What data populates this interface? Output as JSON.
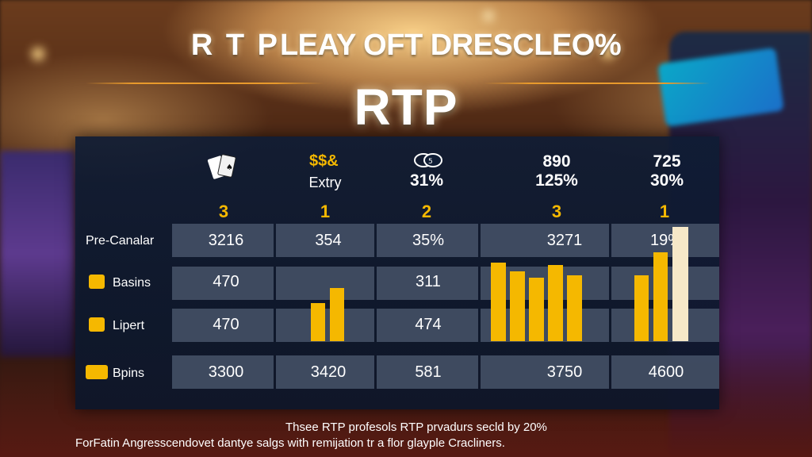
{
  "header": {
    "top_title_first": "R T P",
    "top_title_rest": "LEAY OFT DRESCLEO%",
    "big_title": "RTP"
  },
  "columns": [
    {
      "icon": "playing-cards-icon",
      "line1": "",
      "line2": "",
      "rank": "3"
    },
    {
      "icon": "cash-icon",
      "icon_text": "$$&",
      "line1": "Extry",
      "line2": "",
      "rank": "1"
    },
    {
      "icon": "casino-chips-icon",
      "line1": "",
      "line2": "31%",
      "rank": "2"
    },
    {
      "icon": "",
      "line1": "890",
      "line2": "125%",
      "rank": "3"
    },
    {
      "icon": "",
      "line1": "725",
      "line2": "30%",
      "rank": "1"
    }
  ],
  "rows": [
    {
      "label": "Pre-Canalar",
      "icon": "",
      "values": [
        "3216",
        "354",
        "35%",
        "3271",
        "19%"
      ]
    },
    {
      "label": "Basins",
      "icon": "box-icon",
      "values": [
        "470",
        "",
        "311",
        "",
        ""
      ]
    },
    {
      "label": "Lipert",
      "icon": "note-icon",
      "values": [
        "470",
        "",
        "474",
        "",
        ""
      ]
    },
    {
      "label": "Bpins",
      "icon": "coins-icon",
      "values": [
        "3300",
        "3420",
        "581",
        "3750",
        "4600"
      ]
    }
  ],
  "bars": {
    "group2": [
      0.3,
      0.42
    ],
    "group4": [
      0.62,
      0.55,
      0.5,
      0.6,
      0.52
    ],
    "group5": [
      0.52,
      0.7,
      0.9
    ]
  },
  "colors": {
    "accent": "#f5b800",
    "panel": "#0f1c34",
    "cell": "#465468",
    "cream_bar": "#f6e8c8"
  },
  "footer": {
    "line1": "Thsee RTP profesols RTP prvadurs secld by 20%",
    "line2": "ForFatin Angresscendovet dantye salgs with remijation tr a flor glayple Cracliners."
  }
}
